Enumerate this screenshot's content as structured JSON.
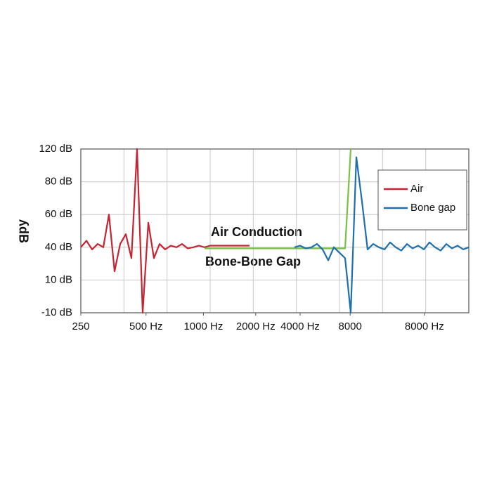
{
  "chart_data": {
    "type": "line",
    "y_label": "ʎdB",
    "annotations": [
      "Air Conduction",
      "Bone-Bone Gap"
    ],
    "xlim": [
      0,
      69
    ],
    "xticks": [
      {
        "value": 0,
        "label": "250"
      },
      {
        "value": 11.6,
        "label": "500 Hz"
      },
      {
        "value": 21.8,
        "label": "1000 Hz"
      },
      {
        "value": 31.1,
        "label": "2000 Hz"
      },
      {
        "value": 39,
        "label": "4000 Hz"
      },
      {
        "value": 47.9,
        "label": "8000"
      },
      {
        "value": 61.1,
        "label": "8000 Hz"
      }
    ],
    "ylim": [
      -10,
      120
    ],
    "yticks": [
      {
        "value": 120,
        "label": "120 dB"
      },
      {
        "value": 80,
        "label": "80 dB"
      },
      {
        "value": 60,
        "label": "60 dB"
      },
      {
        "value": 40,
        "label": "40 dB"
      },
      {
        "value": 10,
        "label": "10 dB"
      },
      {
        "value": -10,
        "label": "-10 dB"
      }
    ],
    "grid": true,
    "legend": "upper right",
    "series": [
      {
        "name": "Air",
        "color": "#c62433",
        "values": [
          40,
          44,
          38,
          42,
          40,
          60,
          18,
          42,
          48,
          30,
          120,
          -10,
          55,
          30,
          42,
          38,
          41,
          40,
          42,
          39,
          40,
          41,
          40,
          41,
          41,
          41,
          41,
          41,
          41,
          41,
          41,
          null,
          null,
          null,
          null,
          null,
          null,
          null,
          null,
          null,
          null,
          null,
          null,
          null,
          null,
          null,
          null,
          null,
          null,
          null,
          null,
          null,
          null,
          null,
          null,
          null,
          null,
          null,
          null,
          null,
          null,
          null,
          null,
          null,
          null,
          null,
          null,
          null,
          null,
          null
        ]
      },
      {
        "color": "#7ac143",
        "values": [
          null,
          null,
          null,
          null,
          null,
          null,
          null,
          null,
          null,
          null,
          null,
          null,
          null,
          null,
          null,
          null,
          null,
          null,
          null,
          null,
          null,
          null,
          39,
          39,
          39,
          39,
          39,
          39,
          39,
          39,
          39,
          39,
          39,
          39,
          39,
          39,
          39,
          39,
          39,
          39,
          39,
          39,
          39,
          39,
          39,
          39,
          39,
          39,
          120,
          null,
          null,
          null,
          null,
          null,
          null,
          null,
          null,
          null,
          null,
          null,
          null,
          null,
          null,
          null,
          null,
          null,
          null,
          null,
          null,
          null
        ]
      },
      {
        "name": "Bone gap",
        "color": "#1f6fad",
        "values": [
          null,
          null,
          null,
          null,
          null,
          null,
          null,
          null,
          null,
          null,
          null,
          null,
          null,
          null,
          null,
          null,
          null,
          null,
          null,
          null,
          null,
          null,
          null,
          null,
          null,
          null,
          null,
          null,
          null,
          null,
          null,
          null,
          null,
          null,
          null,
          null,
          null,
          null,
          40,
          41,
          39,
          40,
          42,
          38,
          28,
          40,
          35,
          30,
          -10,
          110,
          68,
          38,
          42,
          40,
          38,
          43,
          40,
          37,
          42,
          39,
          41,
          38,
          43,
          40,
          37,
          42,
          39,
          41,
          38,
          40
        ]
      }
    ]
  }
}
